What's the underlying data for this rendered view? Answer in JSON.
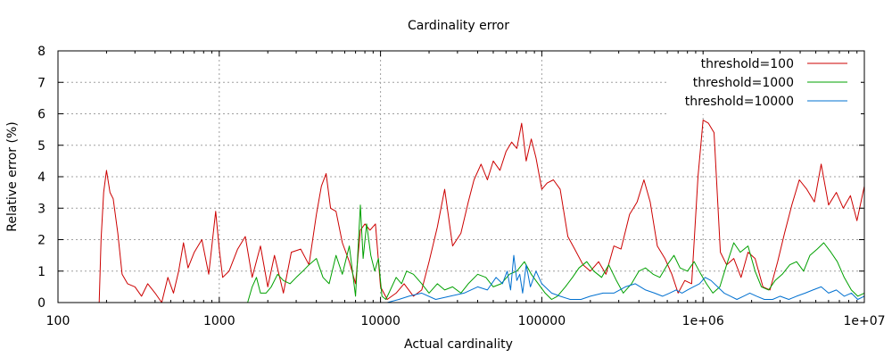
{
  "chart_data": {
    "type": "line",
    "title": "Cardinality error",
    "xlabel": "Actual cardinality",
    "ylabel": "Relative error (%)",
    "x_scale": "log",
    "xlim": [
      100,
      10000000
    ],
    "ylim": [
      0,
      8
    ],
    "grid": true,
    "legend_position": "top-right",
    "x_ticks": [
      {
        "value": 100,
        "label": "100"
      },
      {
        "value": 1000,
        "label": "1000"
      },
      {
        "value": 10000,
        "label": "10000"
      },
      {
        "value": 100000,
        "label": "100000"
      },
      {
        "value": 1000000,
        "label": "1e+06"
      },
      {
        "value": 10000000,
        "label": "1e+07"
      }
    ],
    "y_ticks": [
      {
        "value": 0,
        "label": "0"
      },
      {
        "value": 1,
        "label": "1"
      },
      {
        "value": 2,
        "label": "2"
      },
      {
        "value": 3,
        "label": "3"
      },
      {
        "value": 4,
        "label": "4"
      },
      {
        "value": 5,
        "label": "5"
      },
      {
        "value": 6,
        "label": "6"
      },
      {
        "value": 7,
        "label": "7"
      },
      {
        "value": 8,
        "label": "8"
      }
    ],
    "series": [
      {
        "name": "threshold=100",
        "color": "#cc0000",
        "x": [
          180,
          185,
          192,
          200,
          210,
          220,
          235,
          250,
          270,
          300,
          330,
          360,
          400,
          440,
          480,
          520,
          560,
          600,
          640,
          700,
          780,
          860,
          950,
          1000,
          1050,
          1150,
          1300,
          1450,
          1600,
          1800,
          2000,
          2200,
          2500,
          2800,
          3200,
          3600,
          4000,
          4300,
          4600,
          4900,
          5300,
          5800,
          6400,
          7000,
          7500,
          8000,
          8600,
          9300,
          10000,
          11000,
          12500,
          14000,
          16000,
          18000,
          20000,
          22500,
          25000,
          28000,
          31500,
          35000,
          38000,
          42000,
          46000,
          50000,
          55000,
          60000,
          65000,
          70000,
          75000,
          80000,
          86000,
          92000,
          100000,
          108000,
          118000,
          130000,
          145000,
          160000,
          180000,
          200000,
          225000,
          250000,
          280000,
          310000,
          350000,
          390000,
          430000,
          470000,
          520000,
          580000,
          640000,
          700000,
          770000,
          850000,
          930000,
          1000000,
          1080000,
          1170000,
          1280000,
          1400000,
          1550000,
          1720000,
          1900000,
          2100000,
          2350000,
          2600000,
          2900000,
          3200000,
          3550000,
          3950000,
          4400000,
          4900000,
          5400000,
          6000000,
          6700000,
          7400000,
          8200000,
          9000000,
          10000000
        ],
        "values": [
          0,
          2.0,
          3.5,
          4.2,
          3.5,
          3.3,
          2.2,
          0.9,
          0.6,
          0.5,
          0.2,
          0.6,
          0.3,
          0,
          0.8,
          0.3,
          1.0,
          1.9,
          1.1,
          1.6,
          2.0,
          0.9,
          2.9,
          1.7,
          0.8,
          1.0,
          1.7,
          2.1,
          0.8,
          1.8,
          0.5,
          1.5,
          0.3,
          1.6,
          1.7,
          1.2,
          2.8,
          3.7,
          4.1,
          3.0,
          2.9,
          1.9,
          1.3,
          0.6,
          2.3,
          2.5,
          2.3,
          2.5,
          0.5,
          0.1,
          0.3,
          0.6,
          0.2,
          0.4,
          1.3,
          2.4,
          3.6,
          1.8,
          2.2,
          3.2,
          3.9,
          4.4,
          3.9,
          4.5,
          4.2,
          4.8,
          5.1,
          4.9,
          5.7,
          4.5,
          5.2,
          4.6,
          3.6,
          3.8,
          3.9,
          3.6,
          2.1,
          1.7,
          1.2,
          1.0,
          1.3,
          0.9,
          1.8,
          1.7,
          2.8,
          3.2,
          3.9,
          3.2,
          1.8,
          1.4,
          0.9,
          0.3,
          0.7,
          0.6,
          4.0,
          5.8,
          5.7,
          5.4,
          1.6,
          1.2,
          1.4,
          0.8,
          1.6,
          1.4,
          0.5,
          0.4,
          1.3,
          2.2,
          3.1,
          3.9,
          3.6,
          3.2,
          4.4,
          3.1,
          3.5,
          3.0,
          3.4,
          2.6,
          3.7
        ]
      },
      {
        "name": "threshold=1000",
        "color": "#00a000",
        "x": [
          1500,
          1600,
          1700,
          1800,
          1950,
          2100,
          2300,
          2500,
          2750,
          3000,
          3300,
          3600,
          4000,
          4400,
          4800,
          5300,
          5800,
          6400,
          7000,
          7500,
          7800,
          8200,
          8700,
          9200,
          9700,
          10200,
          10800,
          11500,
          12500,
          13500,
          14500,
          16000,
          18000,
          20000,
          22500,
          25000,
          28000,
          31500,
          35000,
          40000,
          45000,
          50000,
          56000,
          63000,
          70000,
          78000,
          86000,
          95000,
          105000,
          115000,
          125000,
          140000,
          155000,
          170000,
          190000,
          210000,
          235000,
          260000,
          290000,
          320000,
          360000,
          400000,
          440000,
          490000,
          540000,
          600000,
          660000,
          720000,
          800000,
          880000,
          970000,
          1050000,
          1150000,
          1270000,
          1400000,
          1550000,
          1700000,
          1900000,
          2100000,
          2300000,
          2550000,
          2800000,
          3100000,
          3450000,
          3800000,
          4200000,
          4600000,
          5100000,
          5600000,
          6200000,
          6800000,
          7500000,
          8300000,
          9100000,
          10000000
        ],
        "values": [
          0,
          0.5,
          0.8,
          0.3,
          0.3,
          0.5,
          0.9,
          0.7,
          0.6,
          0.8,
          1.0,
          1.2,
          1.4,
          0.8,
          0.6,
          1.5,
          0.9,
          1.8,
          0.2,
          3.1,
          1.4,
          2.5,
          1.5,
          1.0,
          1.4,
          0.2,
          0.1,
          0.4,
          0.8,
          0.6,
          1.0,
          0.9,
          0.6,
          0.3,
          0.6,
          0.4,
          0.5,
          0.3,
          0.6,
          0.9,
          0.8,
          0.5,
          0.6,
          0.9,
          1.0,
          1.3,
          0.9,
          0.6,
          0.3,
          0.1,
          0.2,
          0.5,
          0.8,
          1.1,
          1.3,
          1.0,
          0.8,
          1.2,
          0.7,
          0.3,
          0.6,
          1.0,
          1.1,
          0.9,
          0.8,
          1.2,
          1.5,
          1.1,
          1.0,
          1.3,
          0.9,
          0.6,
          0.3,
          0.5,
          1.2,
          1.9,
          1.6,
          1.8,
          1.0,
          0.5,
          0.4,
          0.7,
          0.9,
          1.2,
          1.3,
          1.0,
          1.5,
          1.7,
          1.9,
          1.6,
          1.3,
          0.8,
          0.4,
          0.2,
          0.3
        ]
      },
      {
        "name": "threshold=10000",
        "color": "#0070d0",
        "x": [
          11000,
          13000,
          15000,
          18000,
          22000,
          27000,
          33000,
          40000,
          46000,
          52000,
          57000,
          61000,
          64000,
          67000,
          70000,
          73000,
          76000,
          80000,
          85000,
          92000,
          100000,
          115000,
          130000,
          150000,
          175000,
          200000,
          240000,
          280000,
          330000,
          380000,
          440000,
          500000,
          560000,
          620000,
          680000,
          740000,
          800000,
          870000,
          950000,
          1030000,
          1120000,
          1230000,
          1350000,
          1480000,
          1620000,
          1780000,
          1950000,
          2150000,
          2400000,
          2700000,
          3000000,
          3400000,
          3800000,
          4300000,
          4800000,
          5400000,
          6000000,
          6700000,
          7500000,
          8300000,
          9100000,
          10000000
        ],
        "values": [
          0,
          0.1,
          0.2,
          0.3,
          0.1,
          0.2,
          0.3,
          0.5,
          0.4,
          0.8,
          0.6,
          1.0,
          0.4,
          1.5,
          0.7,
          0.9,
          0.3,
          1.2,
          0.5,
          1.0,
          0.6,
          0.3,
          0.2,
          0.1,
          0.1,
          0.2,
          0.3,
          0.3,
          0.5,
          0.6,
          0.4,
          0.3,
          0.2,
          0.3,
          0.4,
          0.3,
          0.4,
          0.5,
          0.6,
          0.8,
          0.7,
          0.5,
          0.3,
          0.2,
          0.1,
          0.2,
          0.3,
          0.2,
          0.1,
          0.1,
          0.2,
          0.1,
          0.2,
          0.3,
          0.4,
          0.5,
          0.3,
          0.4,
          0.2,
          0.3,
          0.1,
          0.2
        ]
      }
    ]
  }
}
